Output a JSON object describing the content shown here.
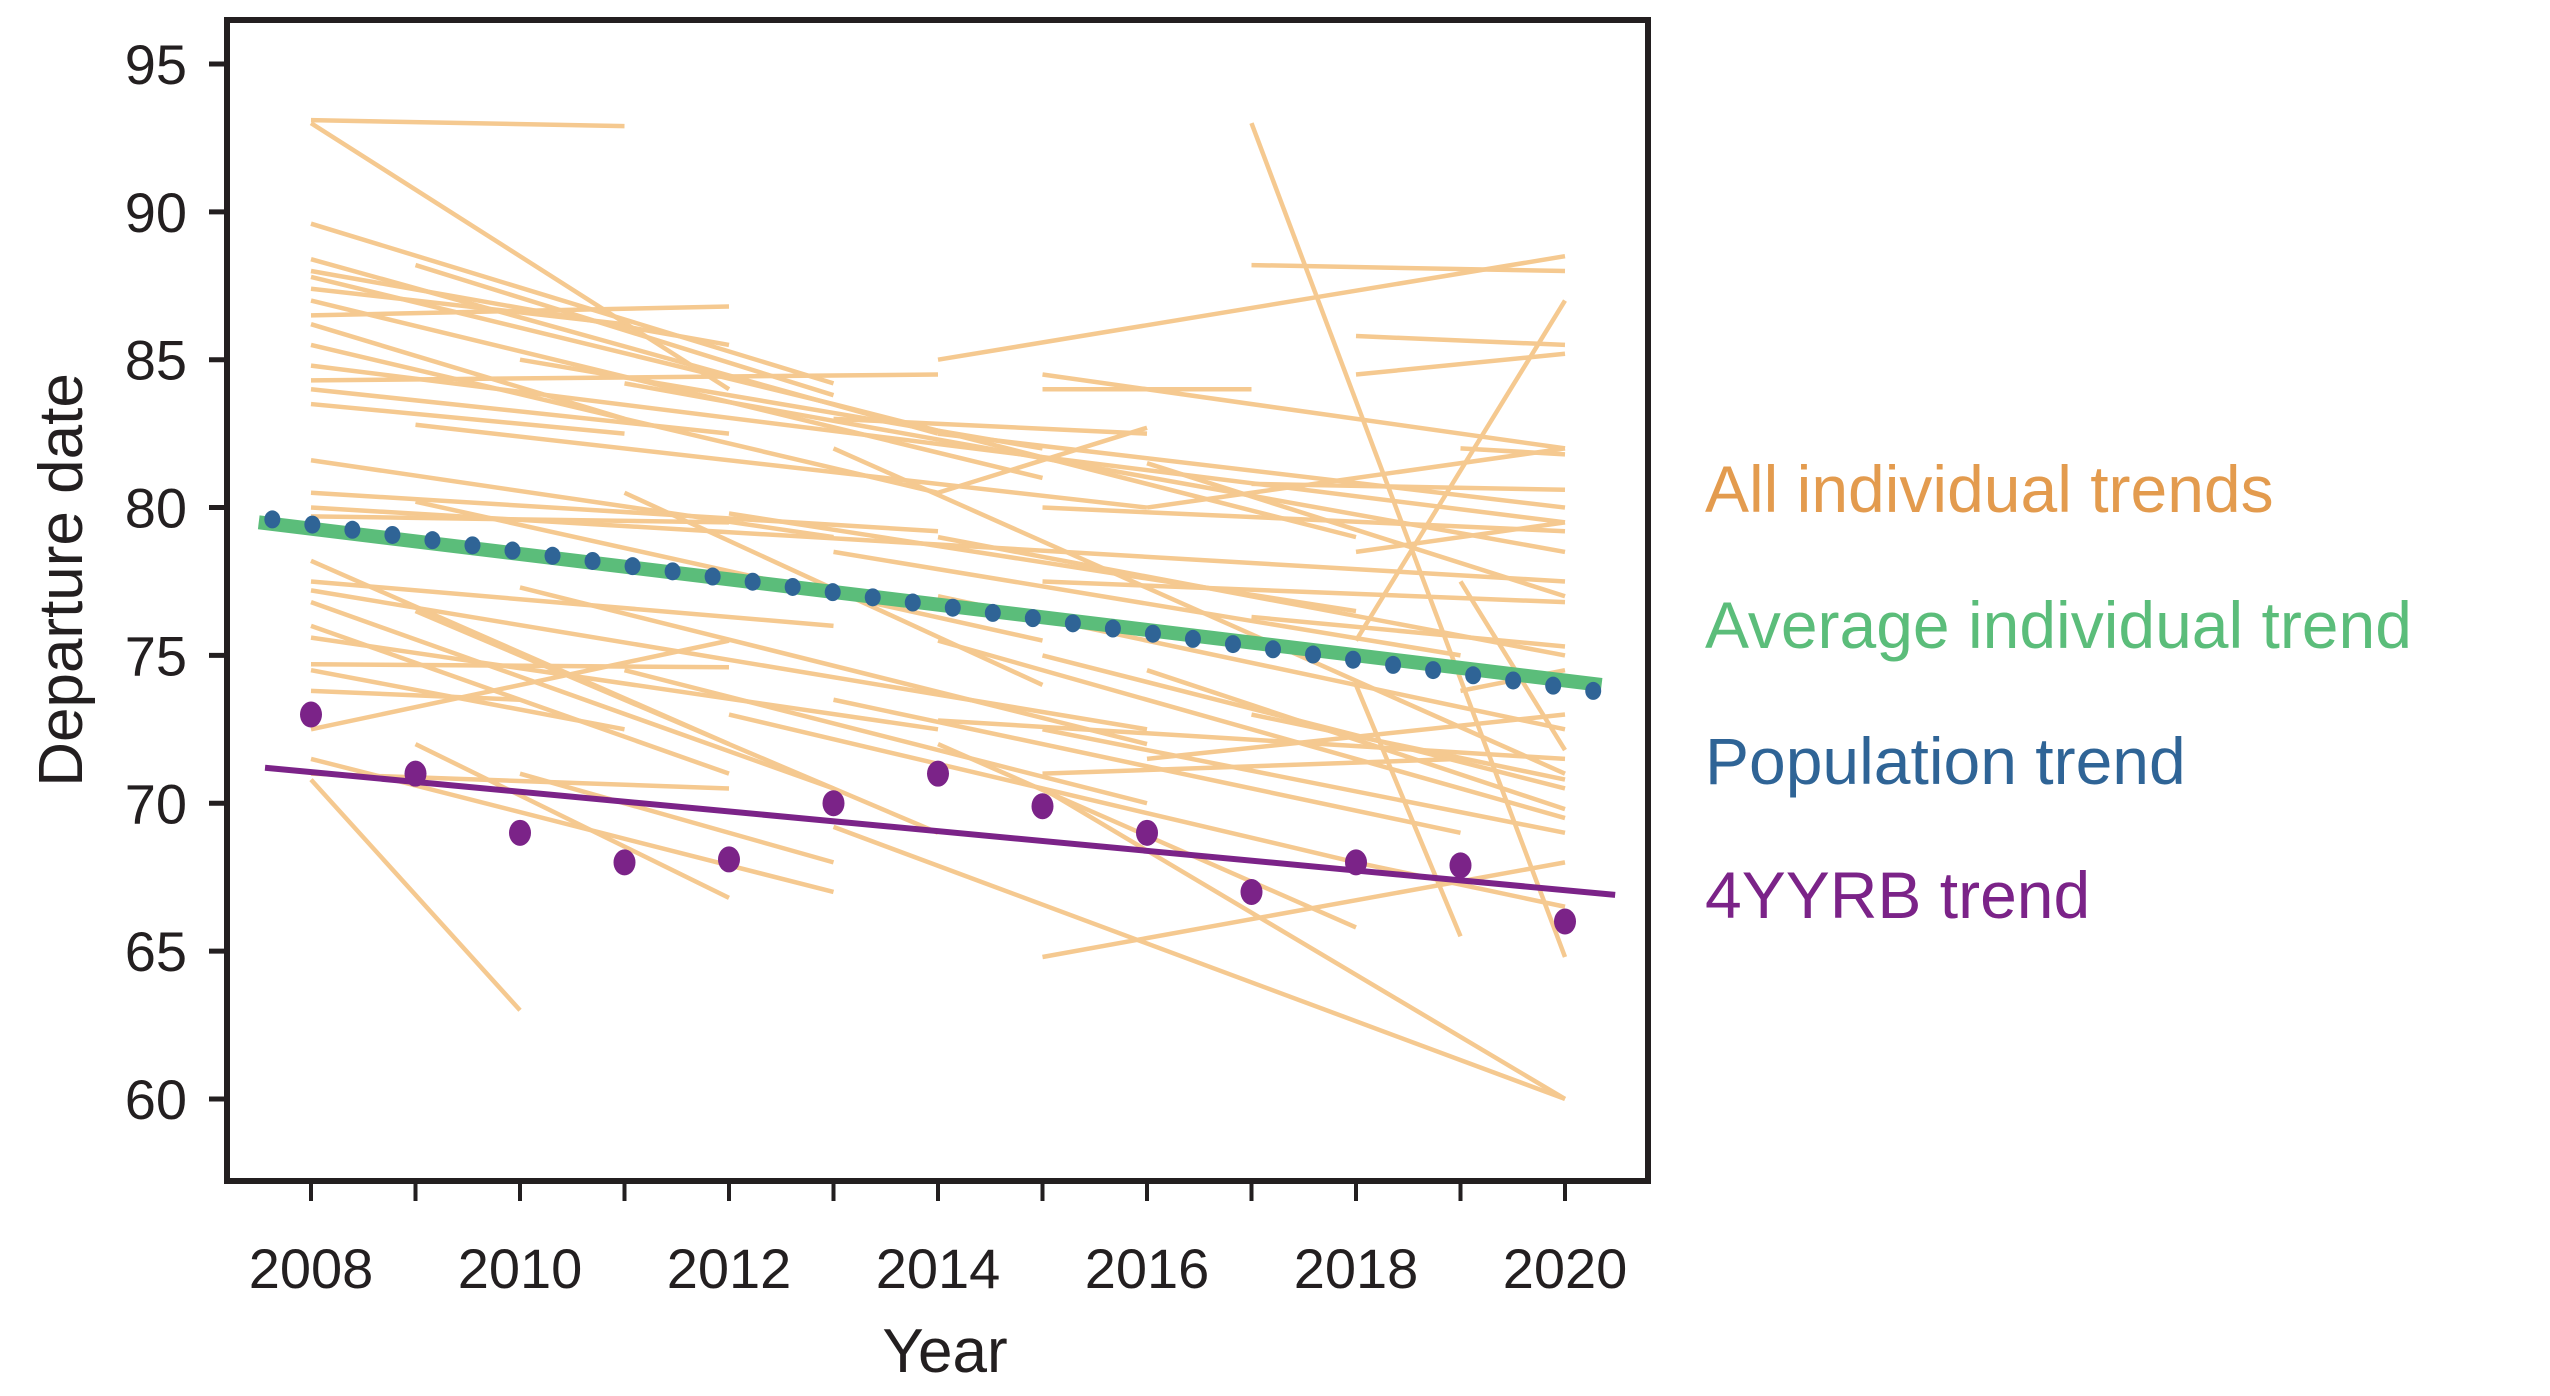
{
  "chart_data": {
    "type": "line",
    "title": "",
    "xlabel": "Year",
    "ylabel": "Departure date",
    "xlim": [
      2007.2,
      2020.8
    ],
    "ylim": [
      57.5,
      96.5
    ],
    "x_ticks": [
      2008,
      2009,
      2010,
      2011,
      2012,
      2013,
      2014,
      2015,
      2016,
      2017,
      2018,
      2019,
      2020
    ],
    "x_tick_labels": [
      "2008",
      "2010",
      "2012",
      "2014",
      "2016",
      "2018",
      "2020"
    ],
    "x_tick_label_years": [
      2008,
      2010,
      2012,
      2014,
      2016,
      2018,
      2020
    ],
    "y_ticks": [
      60,
      65,
      70,
      75,
      80,
      85,
      90,
      95
    ],
    "y_tick_labels": [
      "60",
      "65",
      "70",
      "75",
      "80",
      "85",
      "90",
      "95"
    ],
    "grid": false,
    "legend_position": "right",
    "legend": [
      {
        "label": "All individual trends",
        "color": "#E39B4E"
      },
      {
        "label": "Average individual trend",
        "color": "#5BBD7A"
      },
      {
        "label": "Population trend",
        "color": "#2F6496"
      },
      {
        "label": "4YYRB trend",
        "color": "#7B2388"
      }
    ],
    "colors": {
      "individual": "#F5C990",
      "average": "#5BBD7A",
      "population": "#2F6496",
      "yrb": "#7B2388",
      "axis": "#231f20"
    },
    "series": [
      {
        "name": "Average individual trend",
        "kind": "line",
        "x": [
          2007.5,
          2020.35
        ],
        "y": [
          79.5,
          74.0
        ]
      },
      {
        "name": "Population trend",
        "kind": "dotted-line",
        "x": [
          2007.63,
          2020.27
        ],
        "y": [
          79.6,
          73.8
        ]
      },
      {
        "name": "4YYRB trend",
        "kind": "line",
        "x": [
          2007.56,
          2020.48
        ],
        "y": [
          71.2,
          66.9
        ]
      },
      {
        "name": "4YYRB observations",
        "kind": "scatter",
        "x": [
          2008,
          2009,
          2010,
          2011,
          2012,
          2013,
          2014,
          2015,
          2016,
          2017,
          2018,
          2019,
          2020
        ],
        "y": [
          73.0,
          71.0,
          69.0,
          68.0,
          68.1,
          70.0,
          71.0,
          69.9,
          69.0,
          67.0,
          68.0,
          67.9,
          66.0
        ]
      }
    ],
    "individual_trends": [
      [
        2008,
        93.1,
        2011,
        92.9
      ],
      [
        2008,
        93.0,
        2012,
        84.0
      ],
      [
        2008,
        89.6,
        2013,
        84.2
      ],
      [
        2008,
        88.4,
        2014,
        82.5
      ],
      [
        2008,
        88.0,
        2012,
        85.5
      ],
      [
        2008,
        87.8,
        2013,
        83.5
      ],
      [
        2008,
        87.4,
        2011,
        86.2
      ],
      [
        2008,
        87.0,
        2015,
        81.0
      ],
      [
        2008,
        86.5,
        2012,
        86.8
      ],
      [
        2008,
        86.2,
        2011,
        83.0
      ],
      [
        2008,
        85.5,
        2014,
        80.5
      ],
      [
        2008,
        84.8,
        2020,
        79.5
      ],
      [
        2008,
        84.3,
        2014,
        84.5
      ],
      [
        2008,
        84.0,
        2012,
        82.5
      ],
      [
        2008,
        83.5,
        2011,
        82.5
      ],
      [
        2008,
        81.6,
        2013,
        79.0
      ],
      [
        2008,
        80.5,
        2014,
        79.2
      ],
      [
        2008,
        80.0,
        2020,
        77.5
      ],
      [
        2008,
        79.7,
        2012,
        79.5
      ],
      [
        2008,
        78.2,
        2012,
        72.0
      ],
      [
        2008,
        77.5,
        2013,
        76.0
      ],
      [
        2008,
        77.2,
        2016,
        72.5
      ],
      [
        2008,
        76.8,
        2013,
        70.5
      ],
      [
        2008,
        76.0,
        2012,
        71.0
      ],
      [
        2008,
        75.6,
        2014,
        72.5
      ],
      [
        2008,
        74.7,
        2012,
        74.6
      ],
      [
        2008,
        74.5,
        2011,
        72.5
      ],
      [
        2008,
        73.8,
        2010,
        73.5
      ],
      [
        2008,
        72.5,
        2012,
        75.5
      ],
      [
        2008,
        71.5,
        2013,
        67.0
      ],
      [
        2008,
        71.0,
        2012,
        70.5
      ],
      [
        2008,
        70.8,
        2010,
        63.0
      ],
      [
        2009,
        88.2,
        2013,
        83.8
      ],
      [
        2009,
        82.8,
        2016,
        80.0
      ],
      [
        2009,
        80.2,
        2015,
        75.5
      ],
      [
        2009,
        76.5,
        2014,
        69.0
      ],
      [
        2009,
        72.0,
        2012,
        66.8
      ],
      [
        2010,
        85.0,
        2015,
        82.0
      ],
      [
        2010,
        77.3,
        2016,
        72.0
      ],
      [
        2010,
        71.0,
        2013,
        68.0
      ],
      [
        2011,
        84.2,
        2020,
        78.5
      ],
      [
        2011,
        80.5,
        2015,
        74.0
      ],
      [
        2011,
        74.5,
        2016,
        70.0
      ],
      [
        2012,
        79.8,
        2018,
        76.5
      ],
      [
        2012,
        73.0,
        2018,
        68.0
      ],
      [
        2013,
        83.5,
        2018,
        79.0
      ],
      [
        2013,
        83.0,
        2016,
        82.5
      ],
      [
        2013,
        82.0,
        2020,
        71.0
      ],
      [
        2013,
        78.5,
        2019,
        75.0
      ],
      [
        2013,
        73.5,
        2019,
        69.0
      ],
      [
        2013,
        69.2,
        2020,
        60.0
      ],
      [
        2014,
        85.0,
        2020,
        88.5
      ],
      [
        2014,
        82.5,
        2020,
        80.0
      ],
      [
        2014,
        80.5,
        2016,
        82.7
      ],
      [
        2014,
        79.0,
        2020,
        75.0
      ],
      [
        2014,
        77.0,
        2020,
        72.5
      ],
      [
        2014,
        75.5,
        2020,
        69.5
      ],
      [
        2014,
        72.8,
        2020,
        71.5
      ],
      [
        2014,
        72.0,
        2018,
        65.8
      ],
      [
        2015,
        84.5,
        2020,
        82.0
      ],
      [
        2015,
        84.0,
        2017,
        84.0
      ],
      [
        2015,
        80.0,
        2020,
        79.2
      ],
      [
        2015,
        77.5,
        2020,
        76.8
      ],
      [
        2015,
        75.0,
        2020,
        70.5
      ],
      [
        2015,
        72.5,
        2020,
        69.0
      ],
      [
        2015,
        71.0,
        2019,
        71.5
      ],
      [
        2015,
        64.8,
        2020,
        68.0
      ],
      [
        2015,
        70.5,
        2020,
        60.0
      ],
      [
        2016,
        81.5,
        2020,
        77.0
      ],
      [
        2016,
        80.0,
        2020,
        82.0
      ],
      [
        2016,
        74.5,
        2020,
        69.8
      ],
      [
        2016,
        71.5,
        2020,
        73.0
      ],
      [
        2017,
        93.0,
        2020,
        64.8
      ],
      [
        2017,
        88.2,
        2020,
        88.0
      ],
      [
        2017,
        80.8,
        2020,
        80.6
      ],
      [
        2017,
        76.3,
        2020,
        75.3
      ],
      [
        2017,
        73.0,
        2020,
        70.8
      ],
      [
        2018,
        85.8,
        2020,
        85.5
      ],
      [
        2018,
        84.5,
        2020,
        85.2
      ],
      [
        2018,
        78.5,
        2020,
        79.5
      ],
      [
        2018,
        75.5,
        2020,
        87.0
      ],
      [
        2018,
        74.0,
        2019,
        65.5
      ],
      [
        2018,
        68.0,
        2020,
        66.5
      ],
      [
        2019,
        82.0,
        2020,
        81.8
      ],
      [
        2019,
        77.5,
        2020,
        71.8
      ],
      [
        2019,
        73.8,
        2020,
        74.5
      ]
    ]
  }
}
